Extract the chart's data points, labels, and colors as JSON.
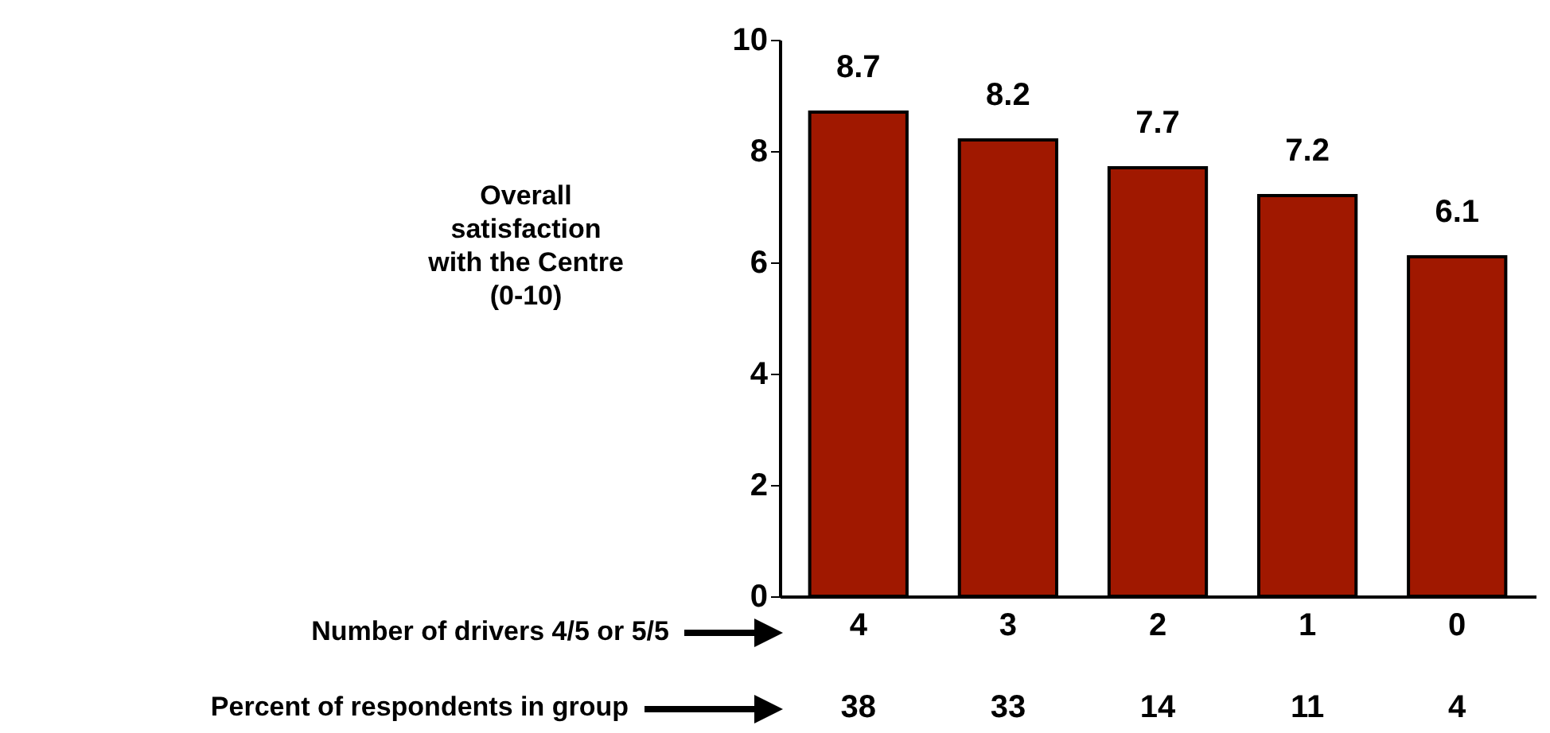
{
  "chart_data": {
    "type": "bar",
    "xlabel": "Number of drivers 4/5 or 5/5",
    "ylabel": "Overall satisfaction with the Centre (0-10)",
    "categories": [
      "4",
      "3",
      "2",
      "1",
      "0"
    ],
    "values": [
      8.7,
      8.2,
      7.7,
      7.2,
      6.1
    ],
    "color": "#a01800",
    "ylim": [
      0,
      10
    ],
    "yticks": [
      0,
      2,
      4,
      6,
      8,
      10
    ],
    "data_labels": true,
    "annotations": [
      "Percent of respondents in group",
      "38",
      "33",
      "14",
      "11",
      "4"
    ]
  }
}
